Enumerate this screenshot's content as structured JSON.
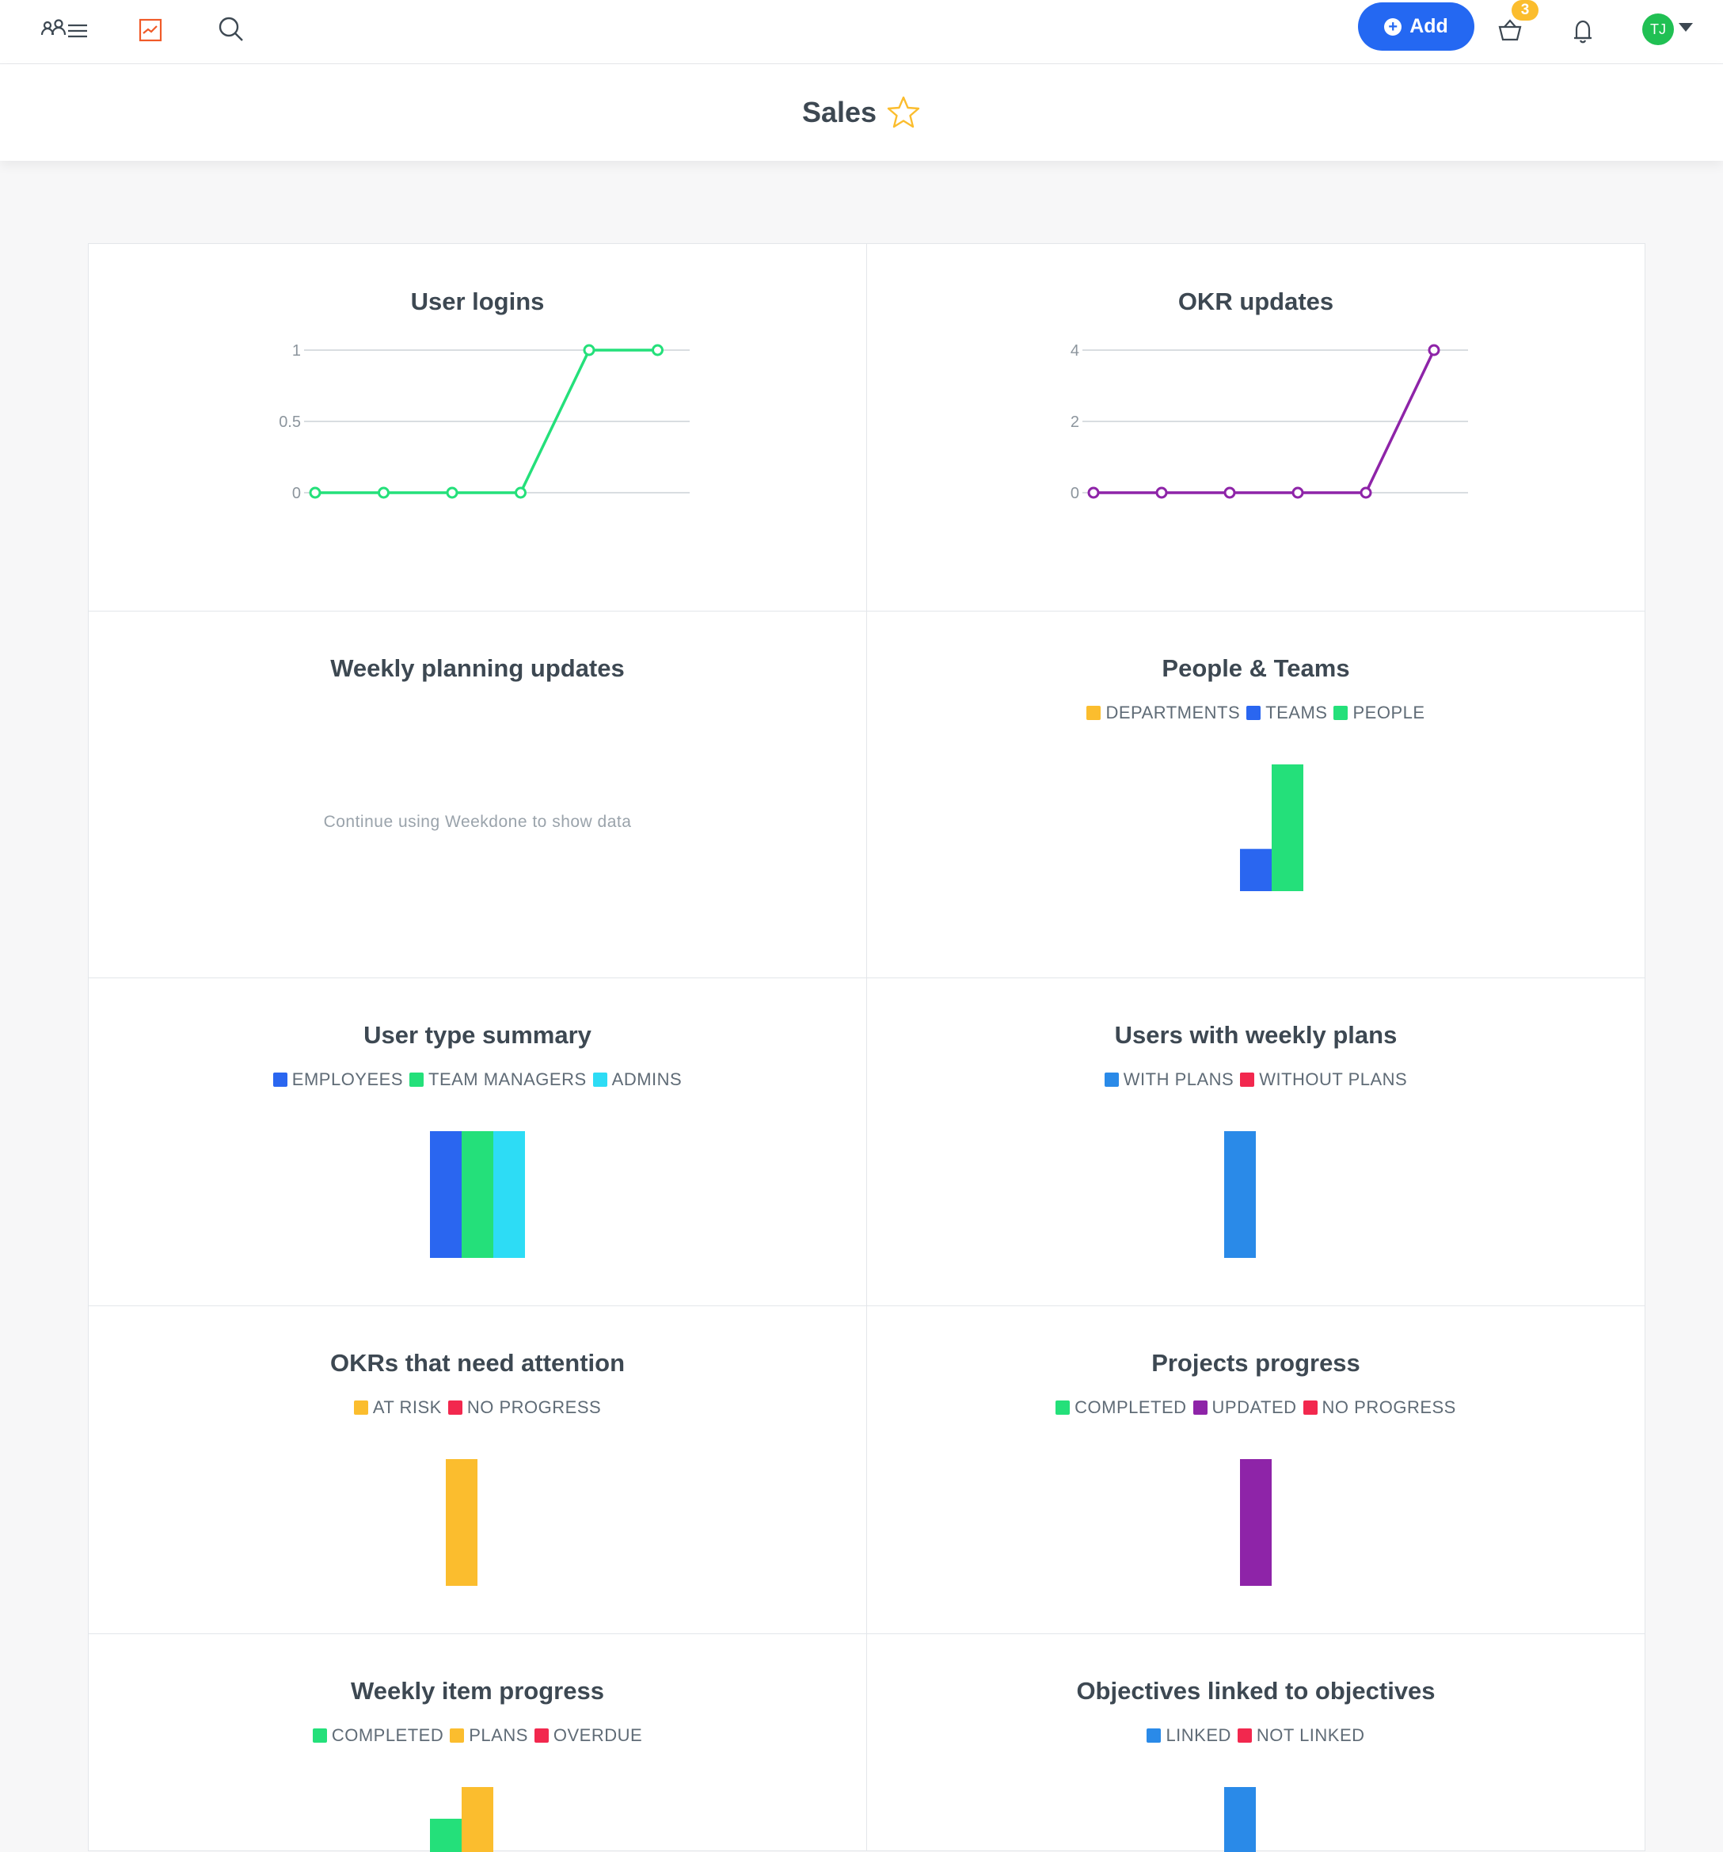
{
  "topbar": {
    "icons": [
      "people-list-icon",
      "analytics-icon",
      "search-icon",
      "basket-icon",
      "bell-icon"
    ],
    "add_label": "Add",
    "basket_count": "3",
    "avatar_initials": "TJ"
  },
  "page": {
    "title": "Sales",
    "favorite_icon": "star-outline-icon"
  },
  "colors": {
    "green": "#24e07a",
    "blue": "#2a66f0",
    "cyan": "#2ddcf5",
    "yellow": "#fbbd2e",
    "red": "#f2284e",
    "purple": "#8e24a8",
    "skyblue": "#2a8ae8"
  },
  "panels": [
    {
      "title": "User logins",
      "chart_data": {
        "type": "line",
        "series": [
          {
            "values": [
              0,
              0,
              0,
              0,
              1,
              1
            ]
          }
        ],
        "y_ticks": [
          "0",
          "0.5",
          "1"
        ],
        "ylim": [
          0,
          1
        ],
        "color": "#24e07a",
        "grid": true
      }
    },
    {
      "title": "OKR updates",
      "chart_data": {
        "type": "line",
        "series": [
          {
            "values": [
              0,
              0,
              0,
              0,
              0,
              4
            ]
          }
        ],
        "y_ticks": [
          "0",
          "2",
          "4"
        ],
        "ylim": [
          0,
          4
        ],
        "color": "#8e24a8",
        "grid": true
      }
    },
    {
      "title": "Weekly planning updates",
      "empty_message": "Continue using Weekdone to show data"
    },
    {
      "title": "People & Teams",
      "legend": [
        {
          "label": "DEPARTMENTS",
          "color": "#fbbd2e"
        },
        {
          "label": "TEAMS",
          "color": "#2a66f0"
        },
        {
          "label": "PEOPLE",
          "color": "#24e07a"
        }
      ],
      "chart_data": {
        "type": "bar",
        "categories": [
          "DEPARTMENTS",
          "TEAMS",
          "PEOPLE"
        ],
        "values": [
          0,
          1,
          3
        ]
      }
    },
    {
      "title": "User type summary",
      "legend": [
        {
          "label": "EMPLOYEES",
          "color": "#2a66f0"
        },
        {
          "label": "TEAM MANAGERS",
          "color": "#24e07a"
        },
        {
          "label": "ADMINS",
          "color": "#2ddcf5"
        }
      ],
      "chart_data": {
        "type": "bar",
        "categories": [
          "EMPLOYEES",
          "TEAM MANAGERS",
          "ADMINS"
        ],
        "values": [
          1,
          1,
          1
        ]
      }
    },
    {
      "title": "Users with weekly plans",
      "legend": [
        {
          "label": "WITH PLANS",
          "color": "#2a8ae8"
        },
        {
          "label": "WITHOUT PLANS",
          "color": "#f2284e"
        }
      ],
      "chart_data": {
        "type": "bar",
        "categories": [
          "WITH PLANS",
          "WITHOUT PLANS"
        ],
        "values": [
          1,
          0
        ]
      }
    },
    {
      "title": "OKRs that need attention",
      "legend": [
        {
          "label": "AT RISK",
          "color": "#fbbd2e"
        },
        {
          "label": "NO PROGRESS",
          "color": "#f2284e"
        }
      ],
      "chart_data": {
        "type": "bar",
        "categories": [
          "AT RISK",
          "NO PROGRESS"
        ],
        "values": [
          1,
          0
        ]
      }
    },
    {
      "title": "Projects progress",
      "legend": [
        {
          "label": "COMPLETED",
          "color": "#24e07a"
        },
        {
          "label": "UPDATED",
          "color": "#8e24a8"
        },
        {
          "label": "NO PROGRESS",
          "color": "#f2284e"
        }
      ],
      "chart_data": {
        "type": "bar",
        "categories": [
          "COMPLETED",
          "UPDATED",
          "NO PROGRESS"
        ],
        "values": [
          0,
          1,
          0
        ]
      }
    },
    {
      "title": "Weekly item progress",
      "legend": [
        {
          "label": "COMPLETED",
          "color": "#24e07a"
        },
        {
          "label": "PLANS",
          "color": "#fbbd2e"
        },
        {
          "label": "OVERDUE",
          "color": "#f2284e"
        }
      ],
      "chart_data": {
        "type": "bar",
        "categories": [
          "COMPLETED",
          "PLANS",
          "OVERDUE"
        ],
        "values": [
          0.75,
          1,
          0
        ]
      }
    },
    {
      "title": "Objectives linked to objectives",
      "legend": [
        {
          "label": "LINKED",
          "color": "#2a8ae8"
        },
        {
          "label": "NOT LINKED",
          "color": "#f2284e"
        }
      ],
      "chart_data": {
        "type": "bar",
        "categories": [
          "LINKED",
          "NOT LINKED"
        ],
        "values": [
          1,
          0
        ]
      }
    }
  ]
}
